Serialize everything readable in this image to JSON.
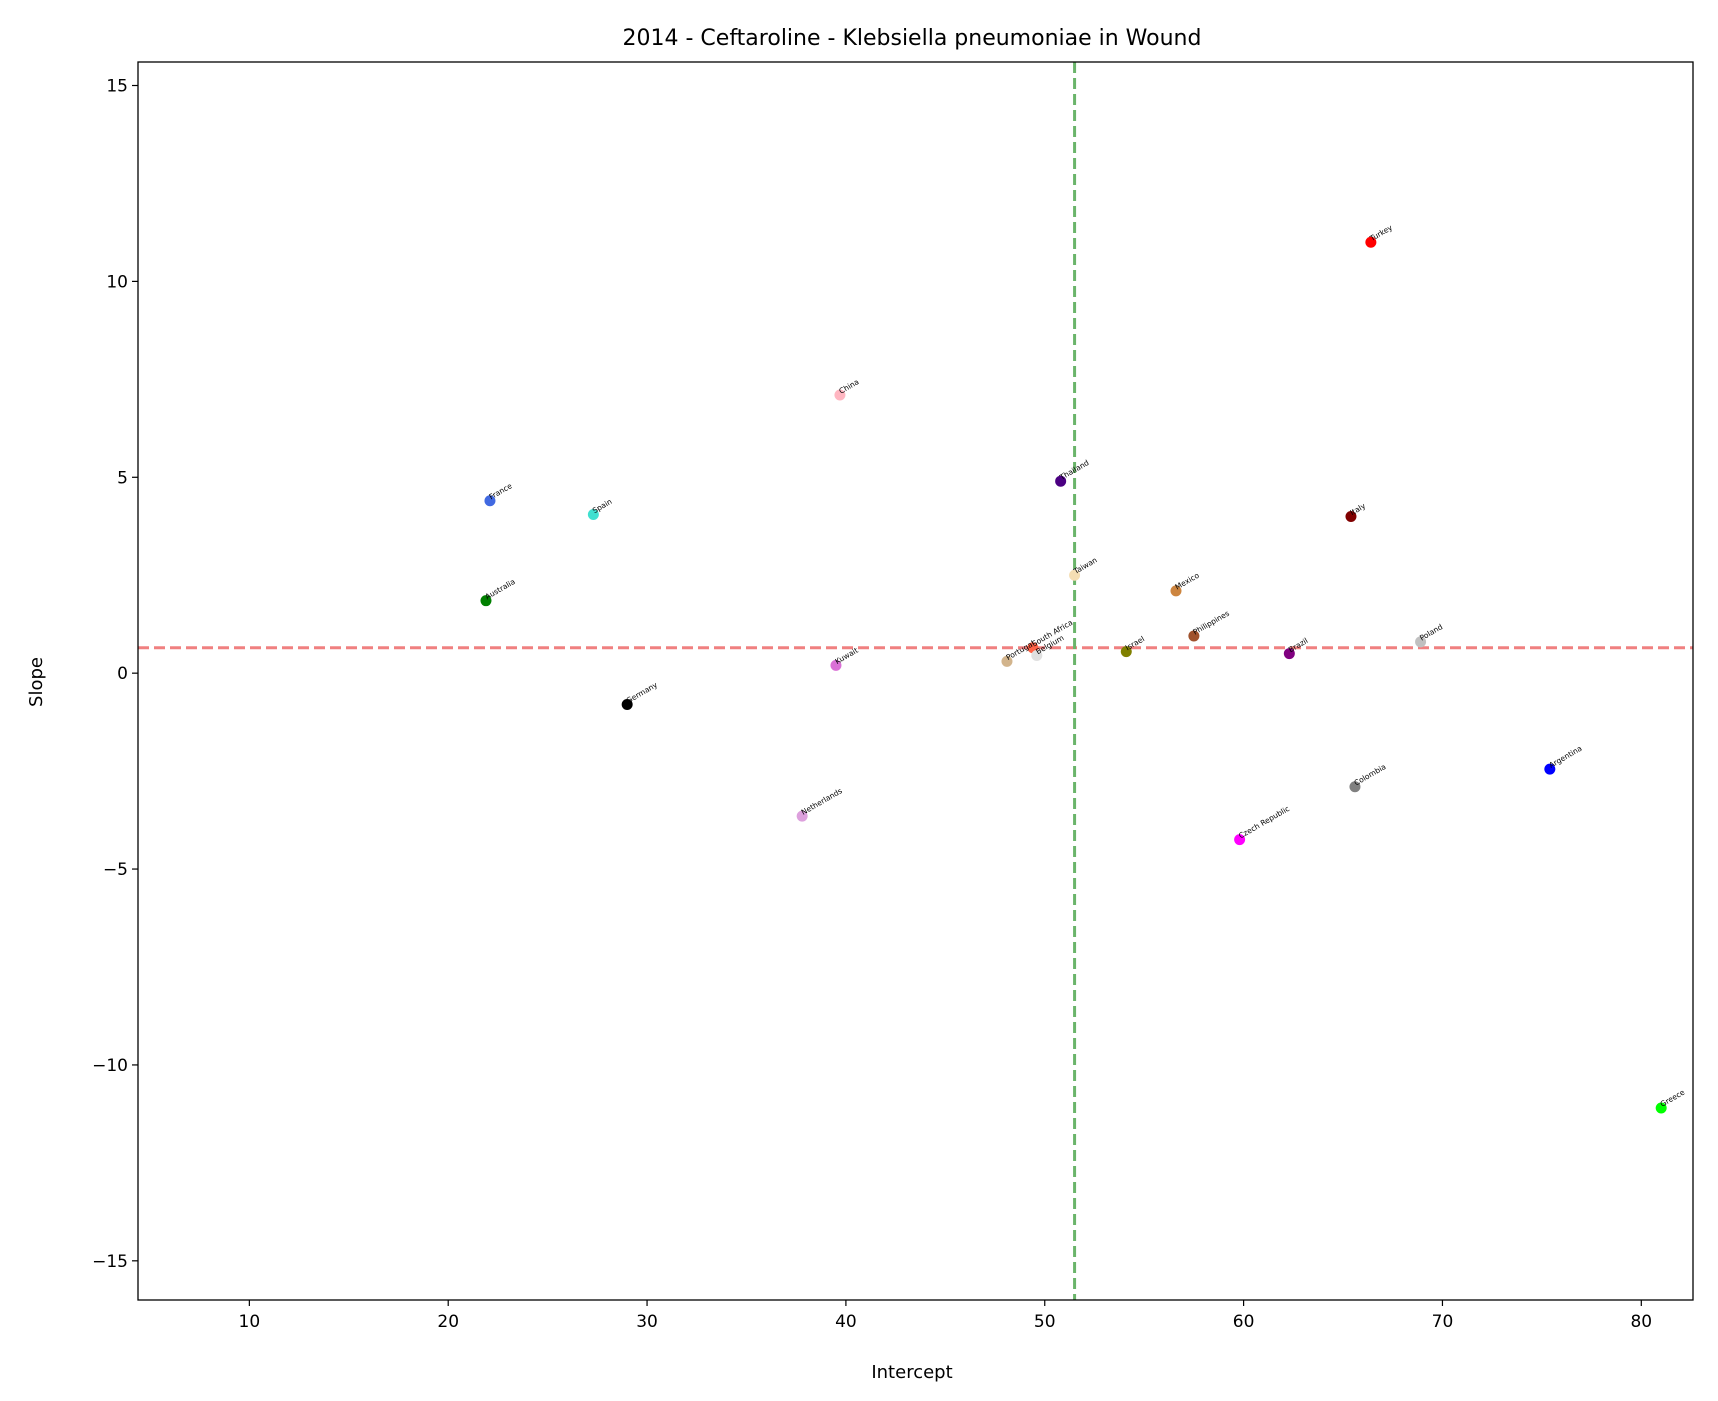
{
  "chart_data": {
    "type": "scatter",
    "title": "2014 - Ceftaroline - Klebsiella pneumoniae in Wound",
    "xlabel": "Intercept",
    "ylabel": "Slope",
    "xlim": [
      4.4,
      82.6
    ],
    "ylim": [
      -16,
      15.6
    ],
    "xticks": [
      10,
      20,
      30,
      40,
      50,
      60,
      70,
      80
    ],
    "yticks": [
      -15,
      -10,
      -5,
      0,
      5,
      10,
      15
    ],
    "grid": false,
    "reference_lines": {
      "horizontal": {
        "y": 0.65,
        "color": "#f08080"
      },
      "vertical": {
        "x": 51.5,
        "color": "#6ab46a"
      }
    },
    "points": [
      {
        "label": "Turkey",
        "x": 66.4,
        "y": 11.0,
        "color": "#ff0000"
      },
      {
        "label": "China",
        "x": 39.7,
        "y": 7.1,
        "color": "#ffb6c1"
      },
      {
        "label": "Thailand",
        "x": 50.8,
        "y": 4.9,
        "color": "#4b0082"
      },
      {
        "label": "France",
        "x": 22.1,
        "y": 4.4,
        "color": "#4169e1"
      },
      {
        "label": "Spain",
        "x": 27.3,
        "y": 4.05,
        "color": "#40e0d0"
      },
      {
        "label": "Italy",
        "x": 65.4,
        "y": 4.0,
        "color": "#800000"
      },
      {
        "label": "Taiwan",
        "x": 51.5,
        "y": 2.5,
        "color": "#f5deb3"
      },
      {
        "label": "Mexico",
        "x": 56.6,
        "y": 2.1,
        "color": "#cd853f"
      },
      {
        "label": "Australia",
        "x": 21.9,
        "y": 1.85,
        "color": "#008000"
      },
      {
        "label": "Philippines",
        "x": 57.5,
        "y": 0.95,
        "color": "#a0522d"
      },
      {
        "label": "Poland",
        "x": 68.9,
        "y": 0.8,
        "color": "#c0c0c0"
      },
      {
        "label": "South Africa",
        "x": 49.4,
        "y": 0.65,
        "color": "#ff6347"
      },
      {
        "label": "Israel",
        "x": 54.1,
        "y": 0.55,
        "color": "#808000"
      },
      {
        "label": "Brazil",
        "x": 62.3,
        "y": 0.5,
        "color": "#800080"
      },
      {
        "label": "Belgium",
        "x": 49.6,
        "y": 0.45,
        "color": "#e0e0e0"
      },
      {
        "label": "Portugal",
        "x": 48.1,
        "y": 0.3,
        "color": "#d2b48c"
      },
      {
        "label": "Kuwait",
        "x": 39.5,
        "y": 0.2,
        "color": "#da70d6"
      },
      {
        "label": "Germany",
        "x": 29.0,
        "y": -0.8,
        "color": "#000000"
      },
      {
        "label": "Argentina",
        "x": 75.4,
        "y": -2.45,
        "color": "#0000ff"
      },
      {
        "label": "Colombia",
        "x": 65.6,
        "y": -2.9,
        "color": "#808080"
      },
      {
        "label": "Netherlands",
        "x": 37.8,
        "y": -3.65,
        "color": "#dda0dd"
      },
      {
        "label": "Czech Republic",
        "x": 59.8,
        "y": -4.25,
        "color": "#ff00ff"
      },
      {
        "label": "Greece",
        "x": 81.0,
        "y": -11.1,
        "color": "#00ff00"
      }
    ]
  }
}
